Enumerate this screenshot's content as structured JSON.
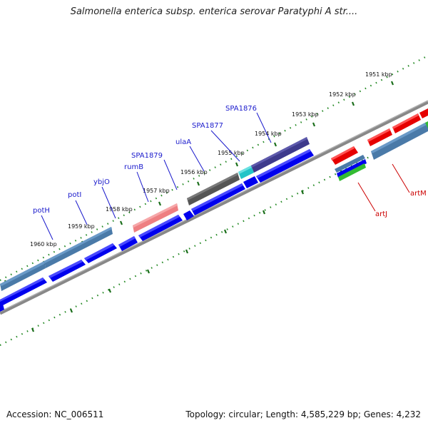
{
  "title": "Salmonella enterica subsp. enterica serovar Paratyphi A str....",
  "footer": {
    "accession": "Accession: NC_006511",
    "topology": "Topology: circular; Length: 4,585,229 bp; Genes: 4,232"
  },
  "colors": {
    "backbone": "#777777",
    "ticks": "#228822",
    "label_blue": "#1a1acc",
    "label_red": "#cc0000"
  },
  "ticks": [
    "1951 kbp",
    "1952 kbp",
    "1953 kbp",
    "1954 kbp",
    "1955 kbp",
    "1956 kbp",
    "1957 kbp",
    "1958 kbp",
    "1959 kbp",
    "1960 kbp"
  ],
  "gene_labels": {
    "potH": "potH",
    "potI": "potI",
    "ybjO": "ybjO",
    "rumB": "rumB",
    "SPA1879": "SPA1879",
    "ulaA": "ulaA",
    "SPA1877": "SPA1877",
    "SPA1876": "SPA1876",
    "artJ": "artJ",
    "artM": "artM"
  }
}
